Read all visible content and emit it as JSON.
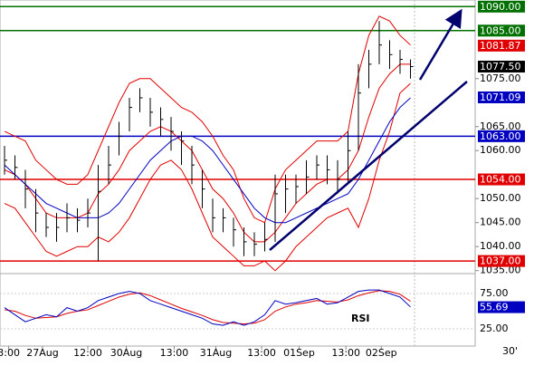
{
  "chart_data": {
    "type": "candlestick",
    "timeframe": "30'",
    "ylim": [
      1034,
      1091
    ],
    "yticks": [
      {
        "value": 1035,
        "label": "1035.00"
      },
      {
        "value": 1040,
        "label": "1040.00"
      },
      {
        "value": 1045,
        "label": "1045.00"
      },
      {
        "value": 1050,
        "label": "1050.00"
      },
      {
        "value": 1060,
        "label": "1060.00"
      },
      {
        "value": 1065,
        "label": "1065.00"
      },
      {
        "value": 1075,
        "label": "1075.00"
      }
    ],
    "xticks": [
      {
        "value": 0.4,
        "label": "3:00"
      },
      {
        "value": 3.65,
        "label": "27Aug"
      },
      {
        "value": 8,
        "label": "12:00"
      },
      {
        "value": 11.7,
        "label": "30Aug"
      },
      {
        "value": 16.3,
        "label": "13:00"
      },
      {
        "value": 20.3,
        "label": "31Aug"
      },
      {
        "value": 24.7,
        "label": "13:00"
      },
      {
        "value": 28.3,
        "label": "01Sep"
      },
      {
        "value": 32.8,
        "label": "13:00"
      },
      {
        "value": 36.2,
        "label": "02Sep"
      }
    ],
    "high": [
      1061,
      1059,
      1056,
      1052,
      1047,
      1047,
      1049,
      1048,
      1050,
      1057,
      1061,
      1066,
      1071,
      1073,
      1071,
      1069,
      1067,
      1064,
      1061,
      1056,
      1050,
      1048,
      1046,
      1044,
      1043,
      1045,
      1055,
      1055,
      1055,
      1058,
      1059,
      1059,
      1058,
      1064,
      1078,
      1081,
      1087,
      1083,
      1081,
      1079
    ],
    "low": [
      1055,
      1054,
      1048,
      1043,
      1042,
      1041,
      1043,
      1043,
      1044,
      1037,
      1053,
      1059,
      1064,
      1068,
      1065,
      1063,
      1060,
      1057,
      1053,
      1048,
      1043,
      1043,
      1040,
      1038,
      1038,
      1039,
      1041,
      1047,
      1049,
      1051,
      1054,
      1053,
      1051,
      1053,
      1060,
      1073,
      1078,
      1077,
      1076,
      1075
    ],
    "close": [
      1058,
      1056.5,
      1052,
      1047,
      1044,
      1044,
      1046,
      1045.5,
      1047,
      1051.5,
      1057,
      1063,
      1069,
      1071,
      1068,
      1066.5,
      1064,
      1062,
      1057,
      1052,
      1046,
      1046,
      1043.5,
      1041,
      1040.5,
      1041.5,
      1051,
      1052,
      1052.5,
      1054.5,
      1057,
      1056,
      1054,
      1060,
      1072,
      1078,
      1082,
      1080,
      1079,
      1077.5
    ],
    "upper_band": [
      1064,
      1063,
      1062,
      1058,
      1056,
      1054,
      1053,
      1053,
      1055,
      1060,
      1065,
      1070,
      1074,
      1075,
      1075,
      1073,
      1071,
      1069,
      1068,
      1066,
      1063,
      1059,
      1056,
      1050,
      1046,
      1045,
      1052,
      1056,
      1058,
      1060,
      1062,
      1062,
      1062,
      1064,
      1076,
      1084,
      1088,
      1087,
      1084,
      1082
    ],
    "middle_band": [
      1056,
      1055,
      1053,
      1050,
      1047,
      1046,
      1046,
      1046,
      1047,
      1051,
      1053,
      1056,
      1060,
      1062,
      1064,
      1065,
      1064,
      1062,
      1060,
      1056,
      1052,
      1050,
      1047,
      1043,
      1041,
      1041,
      1043,
      1046,
      1049,
      1051,
      1053,
      1054,
      1054,
      1056,
      1060,
      1067,
      1073,
      1076,
      1078,
      1078
    ],
    "lower_band": [
      1049,
      1048,
      1045,
      1042,
      1039,
      1038,
      1039,
      1040,
      1040,
      1042,
      1041,
      1043,
      1046,
      1050,
      1054,
      1057,
      1058,
      1056,
      1052,
      1047,
      1042,
      1040,
      1038,
      1036,
      1036,
      1037,
      1035,
      1037,
      1040,
      1042,
      1044,
      1046,
      1047,
      1048,
      1044,
      1050,
      1058,
      1064,
      1072,
      1074
    ],
    "moving_average": [
      1057,
      1055,
      1053,
      1051,
      1049,
      1048,
      1047,
      1046,
      1046,
      1046,
      1047,
      1049,
      1052,
      1055,
      1058,
      1060,
      1062,
      1063,
      1063,
      1062,
      1060,
      1057,
      1054,
      1051,
      1048,
      1046,
      1045,
      1045,
      1046,
      1047,
      1048,
      1049,
      1050,
      1051,
      1054,
      1058,
      1062,
      1066,
      1069,
      1071
    ],
    "colors": {
      "bars": "#000000",
      "bands": "#e00000",
      "average": "#0000c0"
    },
    "levels": [
      {
        "value": 1090,
        "label": "1090.00",
        "color": "#007000"
      },
      {
        "value": 1085,
        "label": "1085.00",
        "color": "#007000"
      },
      {
        "value": 1063,
        "label": "1063.00",
        "color": "#0000c0"
      },
      {
        "value": 1054,
        "label": "1054.00",
        "color": "#e00000"
      },
      {
        "value": 1037,
        "label": "1037.00",
        "color": "#e00000"
      }
    ],
    "markers": [
      {
        "value": 1081.87,
        "label": "1081.87",
        "color": "#e00000"
      },
      {
        "value": 1077.5,
        "label": "1077.50",
        "color": "#000000"
      },
      {
        "value": 1071.09,
        "label": "1071.09",
        "color": "#0000c0"
      }
    ],
    "rsi": {
      "label": "RSI",
      "ylim": [
        0,
        100
      ],
      "yticks": [
        {
          "value": 25,
          "label": "25.00"
        },
        {
          "value": 75,
          "label": "75.00"
        }
      ],
      "values": [
        55,
        45,
        35,
        40,
        45,
        42,
        55,
        50,
        55,
        65,
        70,
        75,
        78,
        75,
        65,
        60,
        55,
        50,
        45,
        40,
        32,
        30,
        35,
        30,
        35,
        45,
        65,
        60,
        62,
        65,
        68,
        60,
        62,
        70,
        78,
        80,
        80,
        75,
        70,
        56
      ],
      "signal": [
        52,
        50,
        44,
        40,
        41,
        42,
        47,
        50,
        52,
        58,
        64,
        70,
        74,
        76,
        72,
        66,
        60,
        54,
        49,
        44,
        38,
        34,
        33,
        32,
        33,
        38,
        50,
        56,
        60,
        62,
        65,
        64,
        63,
        66,
        72,
        76,
        79,
        78,
        74,
        64
      ],
      "current": {
        "value": 55.69,
        "label": "55.69"
      },
      "colors": {
        "values": "#0000c0",
        "signal": "#e00000"
      }
    }
  }
}
